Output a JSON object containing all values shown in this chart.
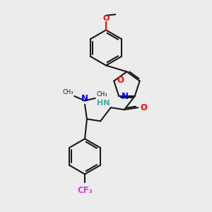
{
  "bg_color": "#ececec",
  "bond_color": "#1a1a1a",
  "N_color": "#0000ff",
  "O_color": "#ff0000",
  "F_color": "#cc44cc",
  "NH_color": "#44aaaa",
  "lw": 1.5,
  "figsize": [
    3.0,
    3.0
  ],
  "dpi": 100,
  "xlim": [
    0,
    10
  ],
  "ylim": [
    0,
    10
  ]
}
